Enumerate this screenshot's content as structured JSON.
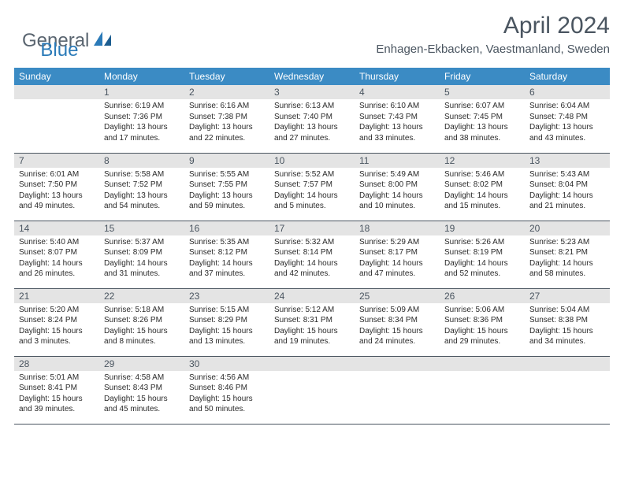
{
  "logo": {
    "word1": "General",
    "word2": "Blue"
  },
  "title": "April 2024",
  "subtitle": "Enhagen-Ekbacken, Vaestmanland, Sweden",
  "colors": {
    "header_bg": "#3b8bc4",
    "header_text": "#ffffff",
    "daynum_bg": "#e4e4e4",
    "text_muted": "#4a5560",
    "rule": "#4a5560",
    "logo_blue": "#2a7ab8"
  },
  "weekdays": [
    "Sunday",
    "Monday",
    "Tuesday",
    "Wednesday",
    "Thursday",
    "Friday",
    "Saturday"
  ],
  "weeks": [
    [
      {
        "n": "",
        "sr": "",
        "ss": "",
        "dl": ""
      },
      {
        "n": "1",
        "sr": "Sunrise: 6:19 AM",
        "ss": "Sunset: 7:36 PM",
        "dl": "Daylight: 13 hours and 17 minutes."
      },
      {
        "n": "2",
        "sr": "Sunrise: 6:16 AM",
        "ss": "Sunset: 7:38 PM",
        "dl": "Daylight: 13 hours and 22 minutes."
      },
      {
        "n": "3",
        "sr": "Sunrise: 6:13 AM",
        "ss": "Sunset: 7:40 PM",
        "dl": "Daylight: 13 hours and 27 minutes."
      },
      {
        "n": "4",
        "sr": "Sunrise: 6:10 AM",
        "ss": "Sunset: 7:43 PM",
        "dl": "Daylight: 13 hours and 33 minutes."
      },
      {
        "n": "5",
        "sr": "Sunrise: 6:07 AM",
        "ss": "Sunset: 7:45 PM",
        "dl": "Daylight: 13 hours and 38 minutes."
      },
      {
        "n": "6",
        "sr": "Sunrise: 6:04 AM",
        "ss": "Sunset: 7:48 PM",
        "dl": "Daylight: 13 hours and 43 minutes."
      }
    ],
    [
      {
        "n": "7",
        "sr": "Sunrise: 6:01 AM",
        "ss": "Sunset: 7:50 PM",
        "dl": "Daylight: 13 hours and 49 minutes."
      },
      {
        "n": "8",
        "sr": "Sunrise: 5:58 AM",
        "ss": "Sunset: 7:52 PM",
        "dl": "Daylight: 13 hours and 54 minutes."
      },
      {
        "n": "9",
        "sr": "Sunrise: 5:55 AM",
        "ss": "Sunset: 7:55 PM",
        "dl": "Daylight: 13 hours and 59 minutes."
      },
      {
        "n": "10",
        "sr": "Sunrise: 5:52 AM",
        "ss": "Sunset: 7:57 PM",
        "dl": "Daylight: 14 hours and 5 minutes."
      },
      {
        "n": "11",
        "sr": "Sunrise: 5:49 AM",
        "ss": "Sunset: 8:00 PM",
        "dl": "Daylight: 14 hours and 10 minutes."
      },
      {
        "n": "12",
        "sr": "Sunrise: 5:46 AM",
        "ss": "Sunset: 8:02 PM",
        "dl": "Daylight: 14 hours and 15 minutes."
      },
      {
        "n": "13",
        "sr": "Sunrise: 5:43 AM",
        "ss": "Sunset: 8:04 PM",
        "dl": "Daylight: 14 hours and 21 minutes."
      }
    ],
    [
      {
        "n": "14",
        "sr": "Sunrise: 5:40 AM",
        "ss": "Sunset: 8:07 PM",
        "dl": "Daylight: 14 hours and 26 minutes."
      },
      {
        "n": "15",
        "sr": "Sunrise: 5:37 AM",
        "ss": "Sunset: 8:09 PM",
        "dl": "Daylight: 14 hours and 31 minutes."
      },
      {
        "n": "16",
        "sr": "Sunrise: 5:35 AM",
        "ss": "Sunset: 8:12 PM",
        "dl": "Daylight: 14 hours and 37 minutes."
      },
      {
        "n": "17",
        "sr": "Sunrise: 5:32 AM",
        "ss": "Sunset: 8:14 PM",
        "dl": "Daylight: 14 hours and 42 minutes."
      },
      {
        "n": "18",
        "sr": "Sunrise: 5:29 AM",
        "ss": "Sunset: 8:17 PM",
        "dl": "Daylight: 14 hours and 47 minutes."
      },
      {
        "n": "19",
        "sr": "Sunrise: 5:26 AM",
        "ss": "Sunset: 8:19 PM",
        "dl": "Daylight: 14 hours and 52 minutes."
      },
      {
        "n": "20",
        "sr": "Sunrise: 5:23 AM",
        "ss": "Sunset: 8:21 PM",
        "dl": "Daylight: 14 hours and 58 minutes."
      }
    ],
    [
      {
        "n": "21",
        "sr": "Sunrise: 5:20 AM",
        "ss": "Sunset: 8:24 PM",
        "dl": "Daylight: 15 hours and 3 minutes."
      },
      {
        "n": "22",
        "sr": "Sunrise: 5:18 AM",
        "ss": "Sunset: 8:26 PM",
        "dl": "Daylight: 15 hours and 8 minutes."
      },
      {
        "n": "23",
        "sr": "Sunrise: 5:15 AM",
        "ss": "Sunset: 8:29 PM",
        "dl": "Daylight: 15 hours and 13 minutes."
      },
      {
        "n": "24",
        "sr": "Sunrise: 5:12 AM",
        "ss": "Sunset: 8:31 PM",
        "dl": "Daylight: 15 hours and 19 minutes."
      },
      {
        "n": "25",
        "sr": "Sunrise: 5:09 AM",
        "ss": "Sunset: 8:34 PM",
        "dl": "Daylight: 15 hours and 24 minutes."
      },
      {
        "n": "26",
        "sr": "Sunrise: 5:06 AM",
        "ss": "Sunset: 8:36 PM",
        "dl": "Daylight: 15 hours and 29 minutes."
      },
      {
        "n": "27",
        "sr": "Sunrise: 5:04 AM",
        "ss": "Sunset: 8:38 PM",
        "dl": "Daylight: 15 hours and 34 minutes."
      }
    ],
    [
      {
        "n": "28",
        "sr": "Sunrise: 5:01 AM",
        "ss": "Sunset: 8:41 PM",
        "dl": "Daylight: 15 hours and 39 minutes."
      },
      {
        "n": "29",
        "sr": "Sunrise: 4:58 AM",
        "ss": "Sunset: 8:43 PM",
        "dl": "Daylight: 15 hours and 45 minutes."
      },
      {
        "n": "30",
        "sr": "Sunrise: 4:56 AM",
        "ss": "Sunset: 8:46 PM",
        "dl": "Daylight: 15 hours and 50 minutes."
      },
      {
        "n": "",
        "sr": "",
        "ss": "",
        "dl": ""
      },
      {
        "n": "",
        "sr": "",
        "ss": "",
        "dl": ""
      },
      {
        "n": "",
        "sr": "",
        "ss": "",
        "dl": ""
      },
      {
        "n": "",
        "sr": "",
        "ss": "",
        "dl": ""
      }
    ]
  ]
}
